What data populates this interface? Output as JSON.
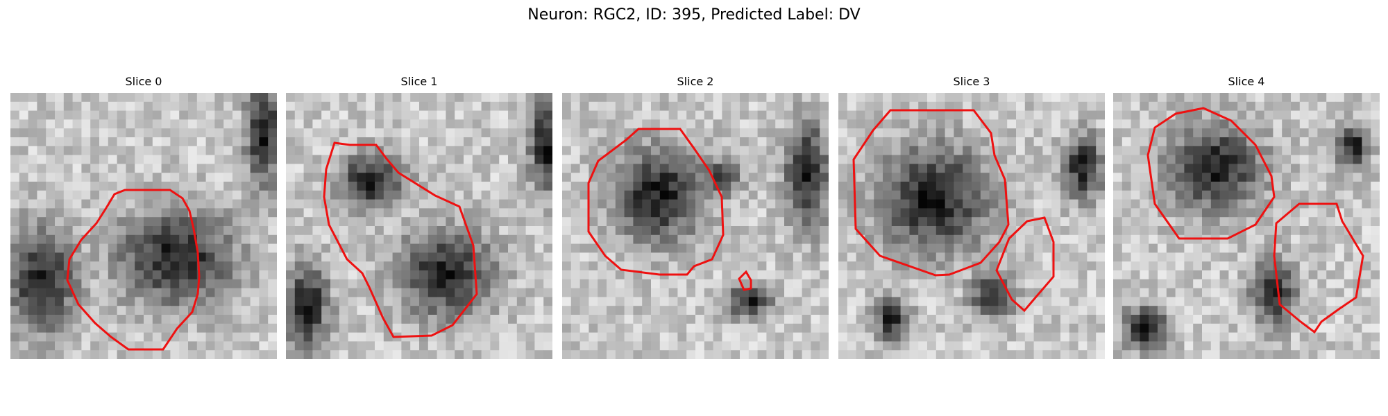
{
  "figure": {
    "title": "Neuron: RGC2, ID: 395, Predicted Label: DV"
  },
  "colors": {
    "contour": "#ee1111",
    "background": "#ffffff"
  },
  "panels": [
    {
      "label": "Slice 0"
    },
    {
      "label": "Slice 1"
    },
    {
      "label": "Slice 2"
    },
    {
      "label": "Slice 3"
    },
    {
      "label": "Slice 4"
    }
  ]
}
